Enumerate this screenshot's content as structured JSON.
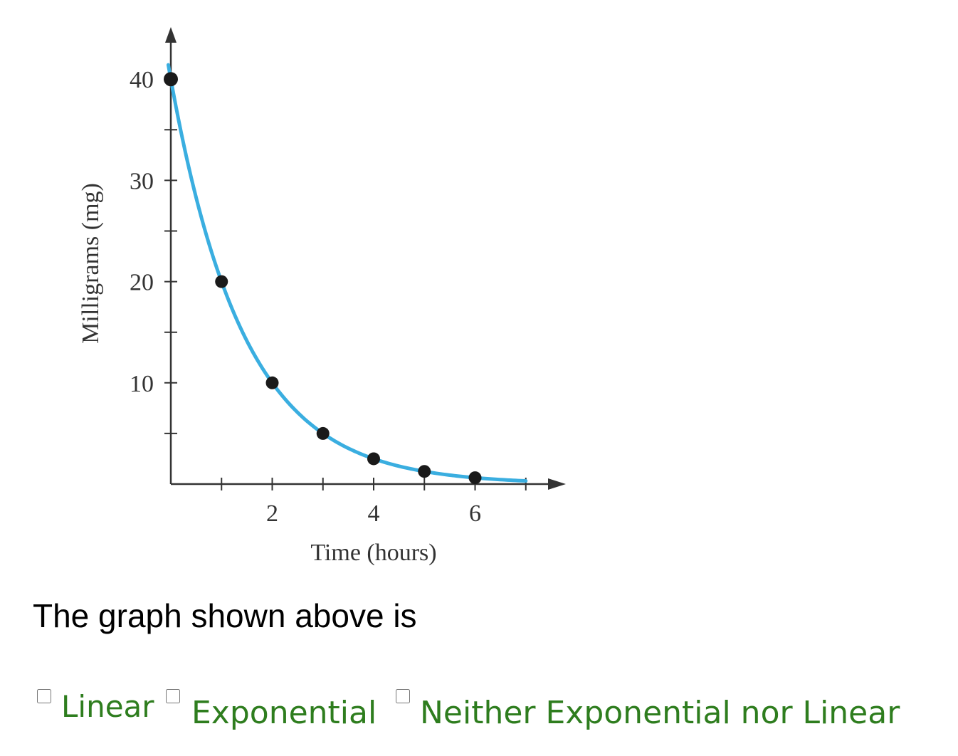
{
  "chart_data": {
    "type": "line",
    "xlabel": "Time (hours)",
    "ylabel": "Milligrams (mg)",
    "xlim": [
      0,
      7.4
    ],
    "ylim": [
      0,
      45
    ],
    "x_ticks": [
      1,
      2,
      3,
      4,
      5,
      6,
      7
    ],
    "x_tick_labels": [
      {
        "x": 2,
        "label": "2"
      },
      {
        "x": 4,
        "label": "4"
      },
      {
        "x": 6,
        "label": "6"
      }
    ],
    "y_ticks": [
      5,
      10,
      15,
      20,
      25,
      30,
      35,
      40
    ],
    "y_tick_labels": [
      {
        "y": 10,
        "label": "10"
      },
      {
        "y": 20,
        "label": "20"
      },
      {
        "y": 30,
        "label": "30"
      },
      {
        "y": 40,
        "label": "40"
      }
    ],
    "points": [
      {
        "x": 0,
        "y": 40
      },
      {
        "x": 1,
        "y": 20
      },
      {
        "x": 2,
        "y": 10
      },
      {
        "x": 3,
        "y": 5
      },
      {
        "x": 4,
        "y": 2.5
      },
      {
        "x": 5,
        "y": 1.25
      },
      {
        "x": 6,
        "y": 0.625
      }
    ],
    "curve": {
      "a": 40,
      "base": 0.5,
      "x_range": [
        -0.05,
        7.0
      ]
    },
    "colors": {
      "curve": "#3aaee0",
      "points": "#1a1a1a",
      "axis": "#333333"
    },
    "grid": false
  },
  "question": {
    "text": "The graph shown above is"
  },
  "options": [
    {
      "label": "Linear",
      "checked": false
    },
    {
      "label": "Exponential",
      "checked": false
    },
    {
      "label": "Neither Exponential nor Linear",
      "checked": false
    }
  ],
  "colors": {
    "option_text": "#2e7d1e",
    "question_text": "#000000"
  }
}
